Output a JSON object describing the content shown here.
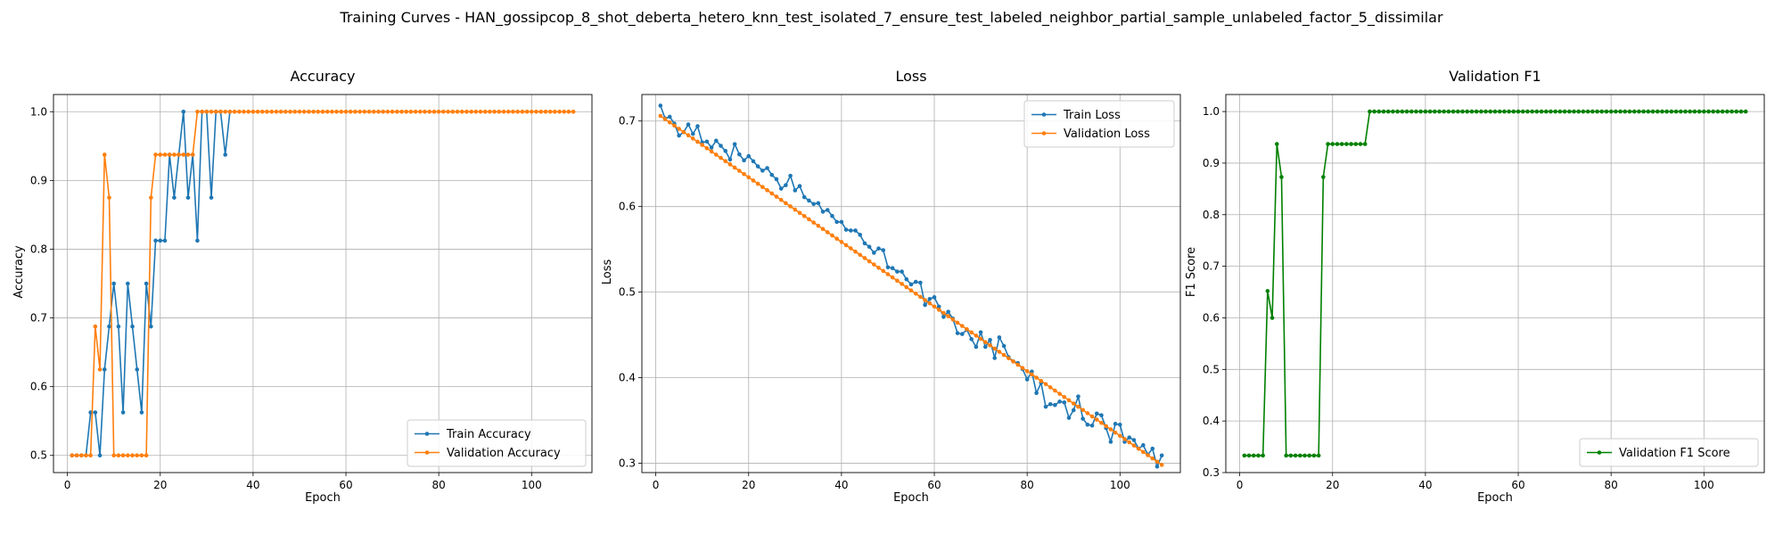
{
  "figure": {
    "suptitle": "Training Curves - HAN_gossipcop_8_shot_deberta_hetero_knn_test_isolated_7_ensure_test_labeled_neighbor_partial_sample_unlabeled_factor_5_dissimilar"
  },
  "colors": {
    "blue": "#1f77b4",
    "orange": "#ff7f0e",
    "green": "#008000",
    "grid": "#b0b0b0"
  },
  "chart_data": [
    {
      "type": "line",
      "title": "Accuracy",
      "xlabel": "Epoch",
      "ylabel": "Accuracy",
      "xlim": [
        -3,
        113
      ],
      "ylim": [
        0.475,
        1.025
      ],
      "xticks": [
        0,
        20,
        40,
        60,
        80,
        100
      ],
      "yticks": [
        0.5,
        0.6,
        0.7,
        0.8,
        0.9,
        1.0
      ],
      "ytick_labels": [
        "0.5",
        "0.6",
        "0.7",
        "0.8",
        "0.9",
        "1.0"
      ],
      "grid": true,
      "legend_position": "lower-right",
      "series": [
        {
          "name": "Train Accuracy",
          "color": "#1f77b4",
          "x": [
            1,
            2,
            3,
            4,
            5,
            6,
            7,
            8,
            9,
            10,
            11,
            12,
            13,
            14,
            15,
            16,
            17,
            18,
            19,
            20,
            21,
            22,
            23,
            24,
            25,
            26,
            27,
            28,
            29,
            30,
            31,
            32,
            33,
            34,
            35
          ],
          "y": [
            0.5,
            0.5,
            0.5,
            0.5,
            0.5625,
            0.5625,
            0.5,
            0.625,
            0.6875,
            0.75,
            0.6875,
            0.5625,
            0.75,
            0.6875,
            0.625,
            0.5625,
            0.75,
            0.6875,
            0.8125,
            0.8125,
            0.8125,
            0.9375,
            0.875,
            0.9375,
            1.0,
            0.875,
            0.9375,
            0.8125,
            1.0,
            1.0,
            0.875,
            1.0,
            1.0,
            0.9375,
            1.0
          ]
        },
        {
          "name": "Validation Accuracy",
          "color": "#ff7f0e",
          "x_start": 1,
          "x_end": 109,
          "y_head": [
            0.5,
            0.5,
            0.5,
            0.5,
            0.5,
            0.6875,
            0.625,
            0.9375,
            0.875,
            0.5,
            0.5,
            0.5,
            0.5,
            0.5,
            0.5,
            0.5,
            0.5,
            0.875,
            0.9375,
            0.9375,
            0.9375,
            0.9375,
            0.9375,
            0.9375,
            0.9375,
            0.9375,
            0.9375
          ],
          "y_tail": 1.0
        }
      ]
    },
    {
      "type": "line",
      "title": "Loss",
      "xlabel": "Epoch",
      "ylabel": "Loss",
      "xlim": [
        -3,
        113
      ],
      "ylim": [
        0.289,
        0.731
      ],
      "xticks": [
        0,
        20,
        40,
        60,
        80,
        100
      ],
      "yticks": [
        0.3,
        0.4,
        0.5,
        0.6,
        0.7
      ],
      "ytick_labels": [
        "0.3",
        "0.4",
        "0.5",
        "0.6",
        "0.7"
      ],
      "grid": true,
      "legend_position": "upper-right",
      "series": [
        {
          "name": "Train Loss",
          "color": "#1f77b4",
          "x": [
            1,
            2,
            3,
            4,
            5,
            6,
            7,
            8,
            9,
            10,
            11,
            12,
            13,
            14,
            15,
            16,
            17,
            18,
            19,
            20,
            21,
            22,
            23,
            24,
            25,
            26,
            27,
            28,
            29,
            30,
            31,
            32,
            33,
            34,
            35,
            36,
            37,
            38,
            39,
            40,
            41,
            42,
            43,
            44,
            45,
            46,
            47,
            48,
            49,
            50,
            51,
            52,
            53,
            54,
            55,
            56,
            57,
            58,
            59,
            60,
            61,
            62,
            63,
            64,
            65,
            66,
            67,
            68,
            69,
            70,
            71,
            72,
            73,
            74,
            75,
            76,
            77,
            78,
            79,
            80,
            81,
            82,
            83,
            84,
            85,
            86,
            87,
            88,
            89,
            90,
            91,
            92,
            93,
            94,
            95,
            96,
            97,
            98,
            99,
            100,
            101,
            102,
            103,
            104,
            105,
            106,
            107,
            108,
            109
          ],
          "y": [
            0.718,
            0.703,
            0.705,
            0.697,
            0.683,
            0.687,
            0.696,
            0.685,
            0.694,
            0.675,
            0.676,
            0.669,
            0.677,
            0.671,
            0.665,
            0.655,
            0.673,
            0.661,
            0.654,
            0.659,
            0.653,
            0.647,
            0.642,
            0.645,
            0.637,
            0.632,
            0.621,
            0.625,
            0.636,
            0.619,
            0.624,
            0.611,
            0.607,
            0.603,
            0.604,
            0.594,
            0.596,
            0.589,
            0.582,
            0.582,
            0.573,
            0.572,
            0.572,
            0.567,
            0.557,
            0.553,
            0.546,
            0.551,
            0.549,
            0.529,
            0.528,
            0.524,
            0.524,
            0.515,
            0.509,
            0.512,
            0.511,
            0.485,
            0.492,
            0.494,
            0.483,
            0.471,
            0.477,
            0.469,
            0.452,
            0.451,
            0.456,
            0.445,
            0.436,
            0.453,
            0.436,
            0.444,
            0.423,
            0.447,
            0.437,
            0.424,
            0.419,
            0.417,
            0.41,
            0.398,
            0.407,
            0.382,
            0.394,
            0.366,
            0.369,
            0.368,
            0.372,
            0.371,
            0.353,
            0.362,
            0.378,
            0.352,
            0.345,
            0.344,
            0.358,
            0.356,
            0.341,
            0.325,
            0.346,
            0.345,
            0.325,
            0.33,
            0.327,
            0.317,
            0.321,
            0.31,
            0.317,
            0.296,
            0.309
          ]
        },
        {
          "name": "Validation Loss",
          "color": "#ff7f0e",
          "x_start": 1,
          "x_end": 109,
          "y_start": 0.706,
          "y_end": 0.298
        }
      ]
    },
    {
      "type": "line",
      "title": "Validation F1",
      "xlabel": "Epoch",
      "ylabel": "F1 Score",
      "xlim": [
        -3,
        113
      ],
      "ylim": [
        0.3,
        1.033
      ],
      "xticks": [
        0,
        20,
        40,
        60,
        80,
        100
      ],
      "yticks": [
        0.3,
        0.4,
        0.5,
        0.6,
        0.7,
        0.8,
        0.9,
        1.0
      ],
      "ytick_labels": [
        "0.3",
        "0.4",
        "0.5",
        "0.6",
        "0.7",
        "0.8",
        "0.9",
        "1.0"
      ],
      "grid": true,
      "legend_position": "lower-right",
      "series": [
        {
          "name": "Validation F1 Score",
          "color": "#008000",
          "x_start": 1,
          "x_end": 109,
          "y_head": [
            0.333,
            0.333,
            0.333,
            0.333,
            0.333,
            0.652,
            0.6,
            0.937,
            0.873,
            0.333,
            0.333,
            0.333,
            0.333,
            0.333,
            0.333,
            0.333,
            0.333,
            0.873,
            0.937,
            0.937,
            0.937,
            0.937,
            0.937,
            0.937,
            0.937,
            0.937,
            0.937
          ],
          "y_tail": 1.0
        }
      ]
    }
  ]
}
